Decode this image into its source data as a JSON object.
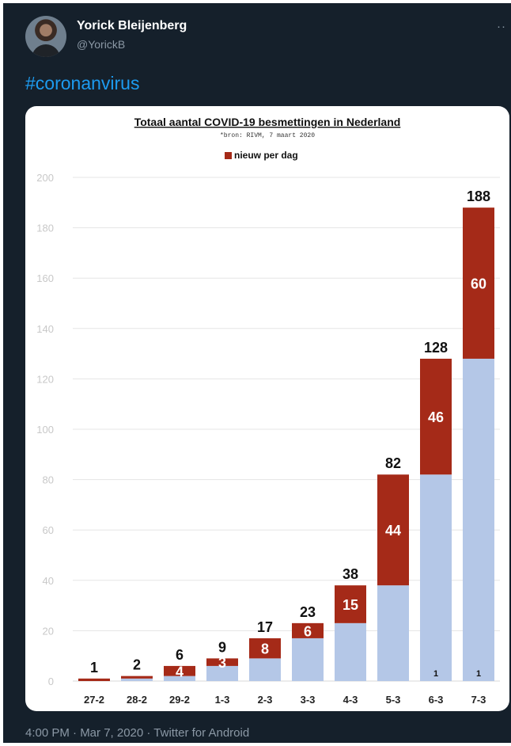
{
  "tweet": {
    "author_name": "Yorick Bleijenberg",
    "author_handle": "@YorickB",
    "text": "#coronanvirus",
    "footer": "4:00 PM · Mar 7, 2020 · Twitter for Android",
    "more_icon": "ellipsis-icon"
  },
  "chart_data": {
    "type": "bar",
    "title": "Totaal  aantal  COVID-19  besmettingen  in  Nederland",
    "subtitle": "*bron:  RIVM,  7 maart  2020",
    "legend": [
      {
        "name": "nieuw per dag",
        "color": "#a52a18"
      }
    ],
    "legend_position": "top-center",
    "categories": [
      "27-2",
      "28-2",
      "29-2",
      "1-3",
      "2-3",
      "3-3",
      "4-3",
      "5-3",
      "6-3",
      "7-3"
    ],
    "series": [
      {
        "values": [
          0,
          1,
          2,
          6,
          9,
          17,
          23,
          38,
          82,
          128
        ],
        "color": "#b4c7e7"
      },
      {
        "name": "nieuw per dag",
        "values": [
          1,
          1,
          4,
          3,
          8,
          6,
          15,
          44,
          46,
          60
        ],
        "color": "#a52a18"
      }
    ],
    "totals": [
      1,
      2,
      6,
      9,
      17,
      23,
      38,
      82,
      128,
      188
    ],
    "red_labels": [
      "",
      "",
      "4",
      "3",
      "8",
      "6",
      "15",
      "44",
      "46",
      "60"
    ],
    "small_labels": [
      "",
      "",
      "",
      "",
      "",
      "",
      "",
      "",
      "1",
      "1"
    ],
    "yticks": [
      0,
      20,
      40,
      60,
      80,
      100,
      120,
      140,
      160,
      180,
      200
    ],
    "ylim": [
      0,
      200
    ],
    "grid": true,
    "xlabel": "",
    "ylabel": ""
  }
}
